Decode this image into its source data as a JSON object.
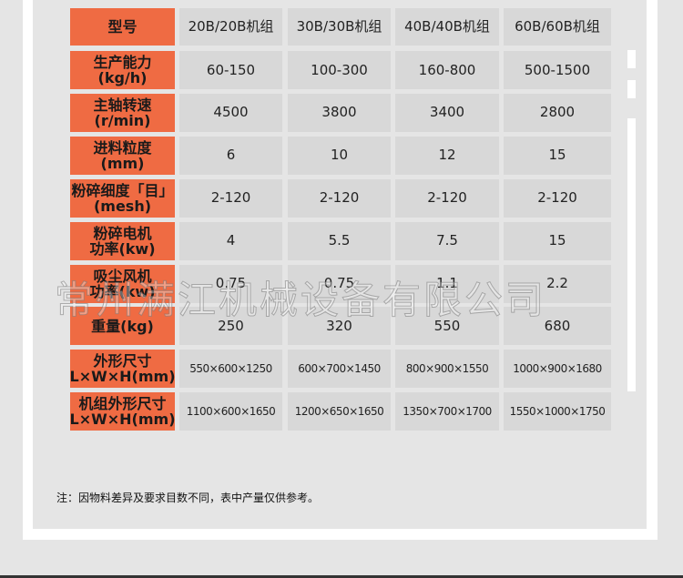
{
  "table": {
    "header": {
      "label": "型号",
      "cols": [
        "20B/20B机组",
        "30B/30B机组",
        "40B/40B机组",
        "60B/60B机组"
      ]
    },
    "rows": [
      {
        "label": [
          "生产能力",
          "(kg/h)"
        ],
        "values": [
          "60-150",
          "100-300",
          "160-800",
          "500-1500"
        ]
      },
      {
        "label": [
          "主轴转速",
          "(r/min)"
        ],
        "values": [
          "4500",
          "3800",
          "3400",
          "2800"
        ]
      },
      {
        "label": [
          "进料粒度",
          "(mm)"
        ],
        "values": [
          "6",
          "10",
          "12",
          "15"
        ]
      },
      {
        "label": [
          "粉碎细度「目」",
          "(mesh)"
        ],
        "values": [
          "2-120",
          "2-120",
          "2-120",
          "2-120"
        ]
      },
      {
        "label": [
          "粉碎电机",
          "功率(kw)"
        ],
        "values": [
          "4",
          "5.5",
          "7.5",
          "15"
        ]
      },
      {
        "label": [
          "吸尘风机",
          "功率(kw)"
        ],
        "values": [
          "0.75",
          "0.75",
          "1.1",
          "2.2"
        ]
      },
      {
        "label": [
          "重量(kg)",
          ""
        ],
        "values": [
          "250",
          "320",
          "550",
          "680"
        ]
      },
      {
        "label": [
          "外形尺寸",
          "L×W×H(mm)"
        ],
        "values": [
          "550×600×1250",
          "600×700×1450",
          "800×900×1550",
          "1000×900×1680"
        ]
      },
      {
        "label": [
          "机组外形尺寸",
          "L×W×H(mm)"
        ],
        "values": [
          "1100×600×1650",
          "1200×650×1650",
          "1350×700×1700",
          "1550×1000×1750"
        ]
      }
    ]
  },
  "note": "注：因物料差异及要求目数不同，表中产量仅供参考。",
  "watermark": "常州满江机械设备有限公司",
  "colors": {
    "label_bg": "#ef6b43",
    "cell_bg": "#d8d8d8",
    "page_bg": "#e5e5e5"
  }
}
